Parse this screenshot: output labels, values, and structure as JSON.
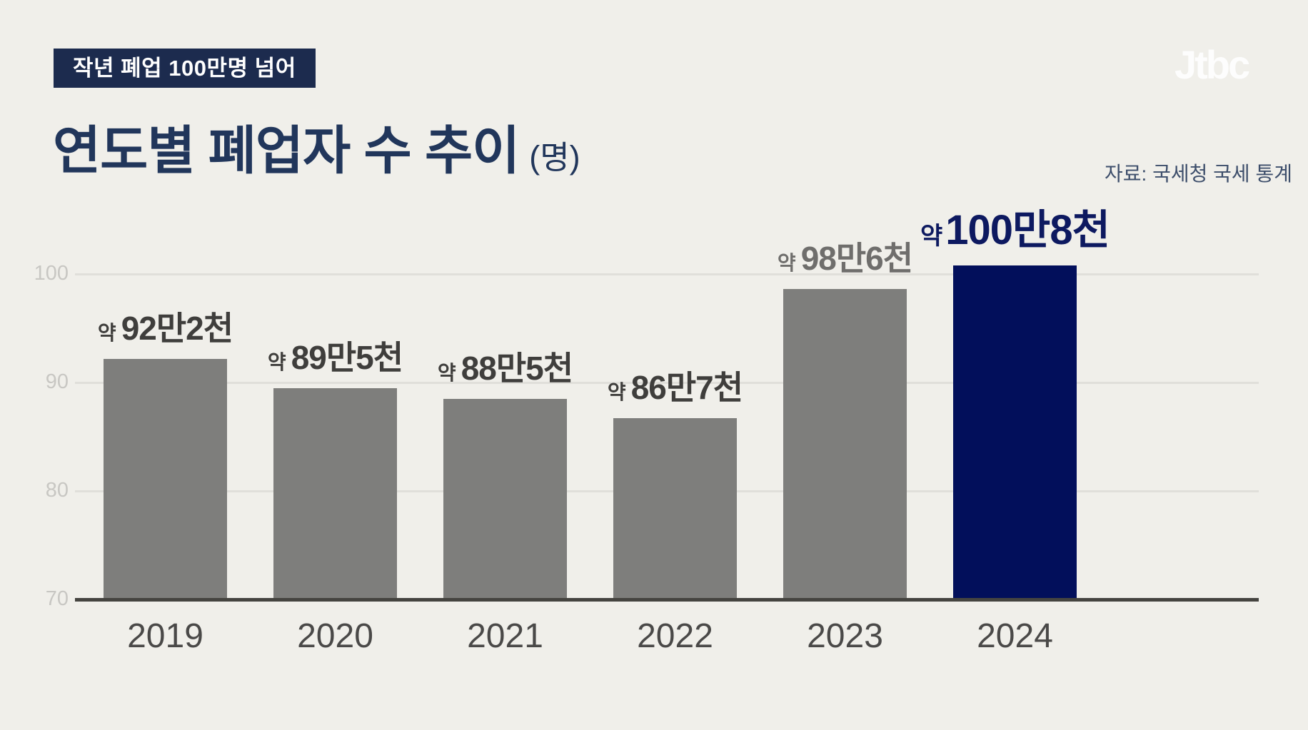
{
  "header": {
    "badge": "작년 폐업 100만명 넘어",
    "title": "연도별 폐업자 수 추이",
    "unit": "(명)",
    "source": "자료: 국세청 국세 통계",
    "logo": "Jtbc"
  },
  "colors": {
    "background": "#f0efea",
    "badge_bg": "#1c2b4e",
    "badge_text": "#ffffff",
    "title_text": "#21365b",
    "source_text": "#3d4e6b",
    "bar_gray": "#7e7e7c",
    "bar_highlight": "#020f5b",
    "label_dark": "#3f3e3c",
    "label_gray": "#6f6e6c",
    "label_highlight": "#0d1960",
    "year_label": "#4a4948",
    "ytick_label": "#c8c7c3",
    "gridline": "#e0dfda",
    "baseline": "#454440",
    "logo_text": "#ffffff"
  },
  "chart_data": {
    "type": "bar",
    "title": "연도별 폐업자 수 추이",
    "unit": "명",
    "categories": [
      "2019",
      "2020",
      "2021",
      "2022",
      "2023",
      "2024"
    ],
    "values": [
      92.2,
      89.5,
      88.5,
      86.7,
      98.6,
      100.8
    ],
    "bar_labels": [
      {
        "prefix": "약",
        "value": "92만2천"
      },
      {
        "prefix": "약",
        "value": "89만5천"
      },
      {
        "prefix": "약",
        "value": "88만5천"
      },
      {
        "prefix": "약",
        "value": "86만7천"
      },
      {
        "prefix": "약",
        "value": "98만6천"
      },
      {
        "prefix": "약",
        "value": "100만8천"
      }
    ],
    "label_styles": [
      "dark",
      "dark",
      "dark",
      "dark",
      "gray",
      "highlight"
    ],
    "highlight_index": 5,
    "yticks": [
      70,
      80,
      90,
      100
    ],
    "ylim": [
      70,
      103.5
    ],
    "xlabel": "",
    "ylabel": "",
    "grid": "horizontal",
    "legend": "none"
  }
}
